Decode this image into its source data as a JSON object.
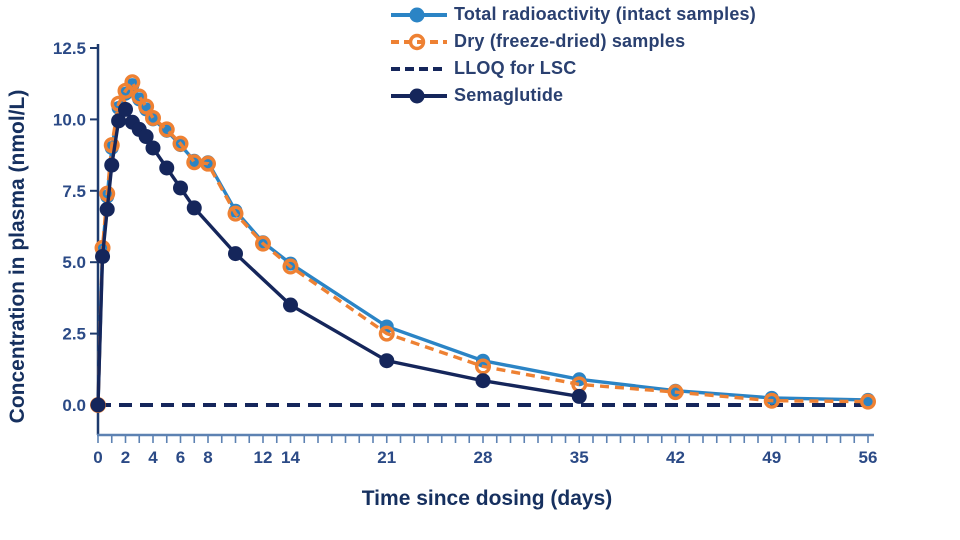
{
  "figure": {
    "background": "#ffffff"
  },
  "colors": {
    "x_axis_line": "#5d82b2",
    "y_axis_line": "#1d3a6d",
    "tick_label": "#2b4a86",
    "axis_title": "#16305f",
    "legend_text": "#2a4070"
  },
  "chart_data": {
    "type": "line",
    "title": "",
    "xlabel": "Time since dosing (days)",
    "ylabel": "Concentration in plasma (nmol/L)",
    "xlim": [
      0,
      56
    ],
    "ylim": [
      0,
      12.5
    ],
    "yticks": [
      0.0,
      2.5,
      5.0,
      7.5,
      10.0,
      12.5
    ],
    "xtick_labels": [
      0,
      2,
      4,
      6,
      8,
      12,
      14,
      21,
      28,
      35,
      42,
      49,
      56
    ],
    "xtick_minor_step": 1,
    "grid": false,
    "legend_position": "top-center",
    "series": [
      {
        "name": "Total radioactivity (intact samples)",
        "color": "#2b84c5",
        "line_style": "solid",
        "marker": "filled-circle",
        "zorder": 2,
        "x": [
          0,
          0.33,
          0.67,
          1,
          1.5,
          2,
          2.5,
          3,
          3.5,
          4,
          5,
          6,
          7,
          8,
          10,
          12,
          14,
          21,
          28,
          35,
          42,
          49,
          56
        ],
        "y": [
          0,
          5.4,
          7.3,
          9.0,
          10.4,
          10.9,
          11.2,
          10.7,
          10.35,
          10.0,
          9.6,
          9.1,
          8.55,
          8.5,
          6.8,
          5.7,
          4.95,
          2.75,
          1.55,
          0.9,
          0.5,
          0.25,
          0.18
        ]
      },
      {
        "name": "Dry (freeze-dried) samples",
        "color": "#ee8133",
        "line_style": "dashed",
        "marker": "open-circle",
        "zorder": 3,
        "x": [
          0,
          0.33,
          0.67,
          1,
          1.5,
          2,
          2.5,
          3,
          3.5,
          4,
          5,
          6,
          7,
          8,
          10,
          12,
          14,
          21,
          28,
          35,
          42,
          49,
          56
        ],
        "y": [
          0,
          5.5,
          7.4,
          9.1,
          10.55,
          11.0,
          11.3,
          10.8,
          10.45,
          10.05,
          9.65,
          9.15,
          8.5,
          8.45,
          6.7,
          5.65,
          4.85,
          2.5,
          1.35,
          0.72,
          0.45,
          0.15,
          0.12
        ]
      },
      {
        "name": "LLOQ for LSC",
        "color": "#15265b",
        "line_style": "dashed",
        "marker": "none",
        "zorder": 1,
        "x": [
          0,
          56.3
        ],
        "y": [
          0,
          0
        ]
      },
      {
        "name": "Semaglutide",
        "color": "#15265b",
        "line_style": "solid",
        "marker": "filled-circle",
        "zorder": 4,
        "x": [
          0,
          0.33,
          0.67,
          1,
          1.5,
          2,
          2.5,
          3,
          3.5,
          4,
          5,
          6,
          7,
          10,
          14,
          21,
          28,
          35
        ],
        "y": [
          0,
          5.2,
          6.85,
          8.4,
          9.95,
          10.35,
          9.9,
          9.65,
          9.4,
          9.0,
          8.3,
          7.6,
          6.9,
          5.3,
          3.5,
          1.55,
          0.85,
          0.3
        ]
      }
    ]
  }
}
